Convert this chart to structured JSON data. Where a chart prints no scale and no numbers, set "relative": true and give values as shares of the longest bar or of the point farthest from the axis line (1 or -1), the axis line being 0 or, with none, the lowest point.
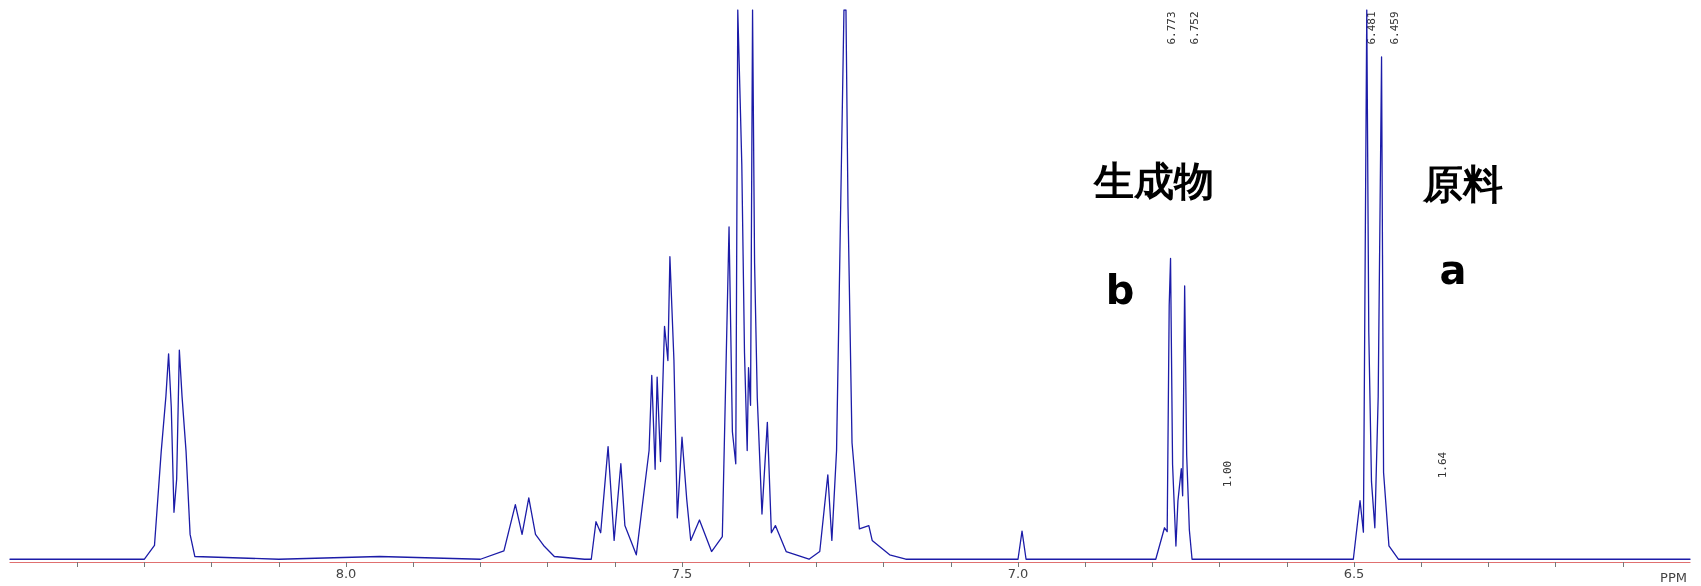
{
  "chart_data": {
    "type": "line",
    "relative": true,
    "xlabel": "PPM",
    "tick_labels": "x",
    "grid": false,
    "marker": "none",
    "xlim": [
      8.5,
      6.0
    ],
    "xticks": [
      {
        "value": 8.4,
        "label": null
      },
      {
        "value": 8.3,
        "label": null
      },
      {
        "value": 8.2,
        "label": null
      },
      {
        "value": 8.1,
        "label": null
      },
      {
        "value": 8.0,
        "label": "8.0"
      },
      {
        "value": 7.9,
        "label": null
      },
      {
        "value": 7.8,
        "label": null
      },
      {
        "value": 7.7,
        "label": null
      },
      {
        "value": 7.6,
        "label": null
      },
      {
        "value": 7.5,
        "label": "7.5"
      },
      {
        "value": 7.4,
        "label": null
      },
      {
        "value": 7.3,
        "label": null
      },
      {
        "value": 7.2,
        "label": null
      },
      {
        "value": 7.1,
        "label": null
      },
      {
        "value": 7.0,
        "label": "7.0"
      },
      {
        "value": 6.9,
        "label": null
      },
      {
        "value": 6.8,
        "label": null
      },
      {
        "value": 6.7,
        "label": null
      },
      {
        "value": 6.6,
        "label": null
      },
      {
        "value": 6.5,
        "label": "6.5"
      },
      {
        "value": 6.4,
        "label": null
      },
      {
        "value": 6.3,
        "label": null
      },
      {
        "value": 6.2,
        "label": null
      },
      {
        "value": 6.1,
        "label": null
      }
    ],
    "series": [
      {
        "color": "#1c1ca8",
        "x": [
          8.5,
          8.3,
          8.285,
          8.275,
          8.268,
          8.264,
          8.26,
          8.256,
          8.252,
          8.248,
          8.244,
          8.238,
          8.232,
          8.225,
          8.1,
          7.95,
          7.8,
          7.765,
          7.748,
          7.738,
          7.728,
          7.718,
          7.706,
          7.69,
          7.645,
          7.635,
          7.628,
          7.621,
          7.61,
          7.601,
          7.591,
          7.585,
          7.568,
          7.549,
          7.545,
          7.54,
          7.537,
          7.532,
          7.526,
          7.521,
          7.518,
          7.512,
          7.507,
          7.5,
          7.493,
          7.487,
          7.474,
          7.456,
          7.44,
          7.43,
          7.425,
          7.42,
          7.417,
          7.413,
          7.411,
          7.407,
          7.403,
          7.401,
          7.398,
          7.395,
          7.392,
          7.388,
          7.381,
          7.373,
          7.367,
          7.361,
          7.345,
          7.311,
          7.295,
          7.283,
          7.277,
          7.27,
          7.266,
          7.259,
          7.256,
          7.253,
          7.247,
          7.236,
          7.222,
          7.217,
          7.191,
          7.167,
          7.0,
          6.994,
          6.988,
          6.795,
          6.782,
          6.778,
          6.775,
          6.773,
          6.77,
          6.765,
          6.762,
          6.757,
          6.755,
          6.752,
          6.749,
          6.745,
          6.741,
          6.729,
          6.501,
          6.491,
          6.486,
          6.481,
          6.478,
          6.474,
          6.469,
          6.464,
          6.459,
          6.456,
          6.452,
          6.448,
          6.434,
          6.0
        ],
        "values": [
          0.005,
          0.005,
          0.03,
          0.2,
          0.3,
          0.377,
          0.28,
          0.09,
          0.15,
          0.384,
          0.3,
          0.2,
          0.05,
          0.01,
          0.005,
          0.01,
          0.005,
          0.02,
          0.104,
          0.05,
          0.116,
          0.05,
          0.03,
          0.01,
          0.005,
          0.005,
          0.073,
          0.053,
          0.209,
          0.039,
          0.178,
          0.066,
          0.013,
          0.202,
          0.338,
          0.168,
          0.335,
          0.182,
          0.427,
          0.365,
          0.553,
          0.365,
          0.08,
          0.226,
          0.114,
          0.039,
          0.076,
          0.019,
          0.046,
          0.607,
          0.236,
          0.178,
          1.0,
          0.815,
          0.719,
          0.379,
          0.202,
          0.352,
          0.284,
          1.0,
          0.542,
          0.298,
          0.087,
          0.253,
          0.053,
          0.066,
          0.019,
          0.005,
          0.019,
          0.158,
          0.039,
          0.202,
          0.488,
          1.0,
          1.0,
          0.644,
          0.216,
          0.06,
          0.066,
          0.039,
          0.013,
          0.005,
          0.005,
          0.056,
          0.005,
          0.005,
          0.062,
          0.055,
          0.465,
          0.55,
          0.177,
          0.029,
          0.111,
          0.169,
          0.12,
          0.5,
          0.194,
          0.058,
          0.005,
          0.005,
          0.005,
          0.111,
          0.054,
          1.0,
          0.416,
          0.146,
          0.062,
          0.3,
          0.915,
          0.162,
          0.096,
          0.029,
          0.005,
          0.005
        ]
      }
    ],
    "annotations": [
      "6.773",
      "6.752",
      "6.481",
      "6.459",
      "生成物",
      "原料",
      "b",
      "a",
      "1.00",
      "1.64"
    ]
  }
}
